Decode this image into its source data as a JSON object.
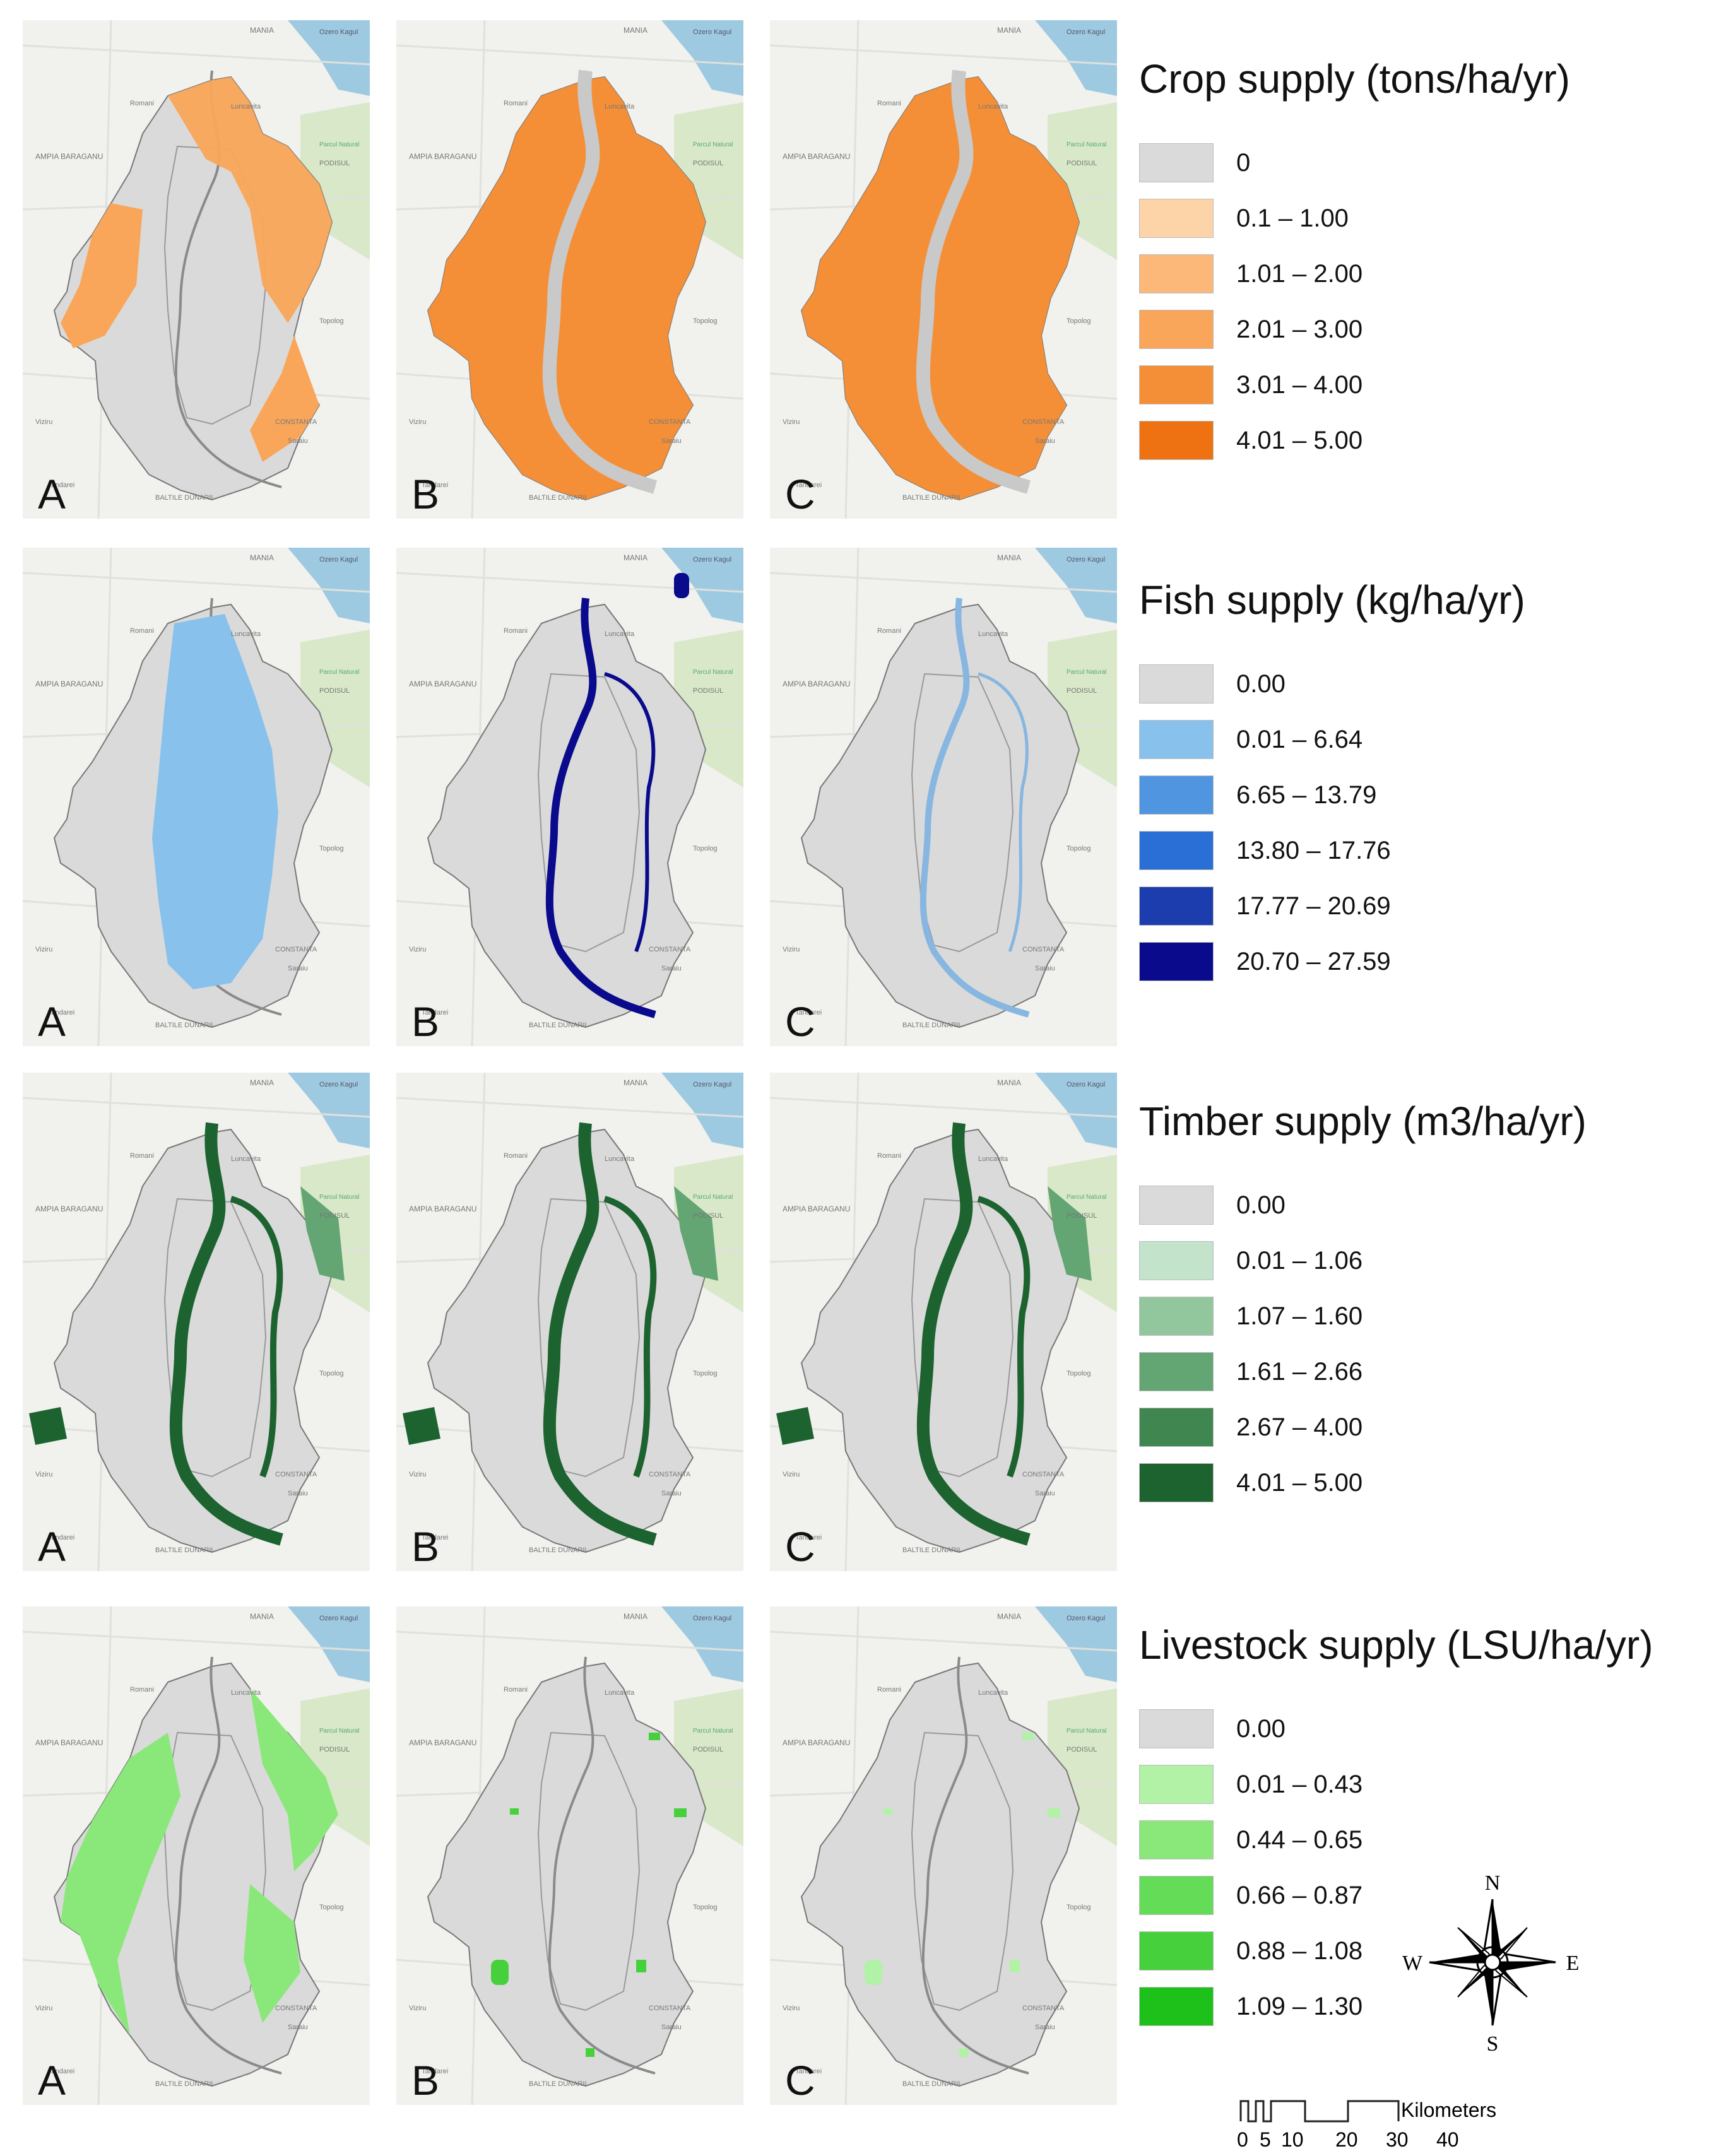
{
  "rows": [
    {
      "legend_title": "Crop supply (tons/ha/yr)",
      "legend_items": [
        {
          "label": "0",
          "color": "#dadada"
        },
        {
          "label": "0.1 – 1.00",
          "color": "#fdd3a8"
        },
        {
          "label": "1.01 – 2.00",
          "color": "#fbb879"
        },
        {
          "label": "2.01 – 3.00",
          "color": "#f9a65a"
        },
        {
          "label": "3.01 – 4.00",
          "color": "#f48f37"
        },
        {
          "label": "4.01 – 5.00",
          "color": "#ee7211"
        }
      ],
      "panels": [
        {
          "letter": "A",
          "fill": "#f9a65a"
        },
        {
          "letter": "B",
          "fill": "#f48f37"
        },
        {
          "letter": "C",
          "fill": "#f48f37"
        }
      ]
    },
    {
      "legend_title": "Fish supply (kg/ha/yr)",
      "legend_items": [
        {
          "label": "0.00",
          "color": "#dadada"
        },
        {
          "label": "0.01 – 6.64",
          "color": "#87c1ec"
        },
        {
          "label": "6.65 – 13.79",
          "color": "#4f95e0"
        },
        {
          "label": "13.80 – 17.76",
          "color": "#2a6fd6"
        },
        {
          "label": "17.77 – 20.69",
          "color": "#1c3dae"
        },
        {
          "label": "20.70 – 27.59",
          "color": "#0a0a8c"
        }
      ],
      "panels": [
        {
          "letter": "A",
          "fill": "#87c1ec"
        },
        {
          "letter": "B",
          "fill": "#0a0a8c"
        },
        {
          "letter": "C",
          "fill": "#87b6e0"
        }
      ]
    },
    {
      "legend_title": "Timber supply (m3/ha/yr)",
      "legend_items": [
        {
          "label": "0.00",
          "color": "#dadada"
        },
        {
          "label": "0.01 – 1.06",
          "color": "#c3e3cb"
        },
        {
          "label": "1.07 – 1.60",
          "color": "#92c79e"
        },
        {
          "label": "1.61 – 2.66",
          "color": "#64a574"
        },
        {
          "label": "2.67 – 4.00",
          "color": "#3f8651"
        },
        {
          "label": "4.01 – 5.00",
          "color": "#1c6330"
        }
      ],
      "panels": [
        {
          "letter": "A",
          "fill": "#1c6330"
        },
        {
          "letter": "B",
          "fill": "#1c6330"
        },
        {
          "letter": "C",
          "fill": "#1c6330"
        }
      ]
    },
    {
      "legend_title": "Livestock supply (LSU/ha/yr)",
      "legend_items": [
        {
          "label": "0.00",
          "color": "#dadada"
        },
        {
          "label": "0.01 – 0.43",
          "color": "#b1f2a7"
        },
        {
          "label": "0.44 – 0.65",
          "color": "#8ae87a"
        },
        {
          "label": "0.66 – 0.87",
          "color": "#65dc57"
        },
        {
          "label": "0.88 – 1.08",
          "color": "#46d13c"
        },
        {
          "label": "1.09 – 1.30",
          "color": "#1ec11a"
        }
      ],
      "panels": [
        {
          "letter": "A",
          "fill": "#8ae87a"
        },
        {
          "letter": "B",
          "fill": "#46d13c"
        },
        {
          "letter": "C",
          "fill": "#b1f2a7"
        }
      ]
    }
  ],
  "basemap_labels": {
    "lake": "Ozero Kagul",
    "country": "MANIA",
    "town1": "Romani",
    "town2": "Luncavita",
    "plain": "AMPIA BARAGANU",
    "hills": "PODISUL",
    "town3": "Topolog",
    "town4": "Viziru",
    "town5": "Tandarei",
    "region": "CONSTANTA",
    "town6": "Saraiu",
    "bottom": "BALTILE DUNARII",
    "park": "Parcul Natural"
  },
  "compass": {
    "n": "N",
    "s": "S",
    "e": "E",
    "w": "W"
  },
  "scale": {
    "unit": "Kilometers",
    "ticks": [
      "0",
      "5",
      "10",
      "20",
      "30",
      "40"
    ]
  }
}
